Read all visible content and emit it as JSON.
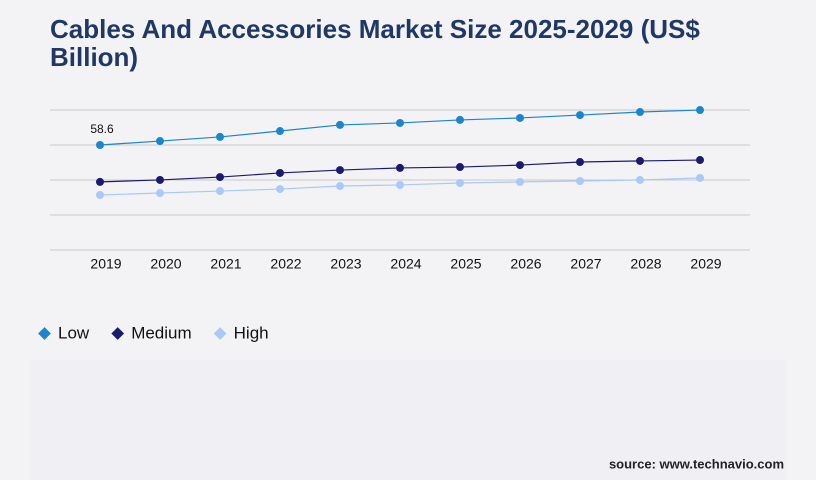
{
  "chart_data": {
    "type": "line",
    "title": "Cables And Accessories Market Size 2025-2029 (US$ Billion)",
    "categories": [
      "2019",
      "2020",
      "2021",
      "2022",
      "2023",
      "2024",
      "2025",
      "2026",
      "2027",
      "2028",
      "2029"
    ],
    "series": [
      {
        "name": "Low",
        "color": "#1a86cc",
        "values": [
          58.6,
          60.8,
          63.1,
          66.4,
          69.8,
          70.9,
          72.6,
          73.7,
          75.3,
          77.0,
          78.1
        ],
        "value_labels": [
          "58.6",
          null,
          null,
          null,
          null,
          null,
          null,
          null,
          null,
          null,
          null
        ]
      },
      {
        "name": "Medium",
        "color": "#1c1a6e",
        "values": [
          38.0,
          39.1,
          40.7,
          43.0,
          44.6,
          45.8,
          46.3,
          47.4,
          49.1,
          49.7,
          50.2
        ]
      },
      {
        "name": "High",
        "color": "#a9c9f7",
        "values": [
          30.7,
          31.8,
          32.9,
          34.0,
          35.7,
          36.3,
          37.4,
          38.0,
          38.5,
          39.1,
          40.2
        ]
      }
    ],
    "ylim": [
      0,
      80
    ],
    "grid": true,
    "source": "source: www.technavio.com"
  }
}
